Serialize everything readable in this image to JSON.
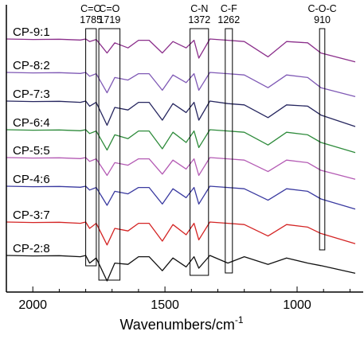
{
  "chart_data": {
    "type": "line",
    "xlabel": "Wavenumbers/cm",
    "xlabel_superscript": "-1",
    "x_ticks": [
      2000,
      1500,
      1000
    ],
    "xlim": [
      2100,
      750
    ],
    "grid": false,
    "legend": "none",
    "series": [
      {
        "name": "CP-9:1",
        "color": "#8b2f8b",
        "values": [
          0.0,
          0.02,
          0.01,
          0.04,
          0.0,
          0.1,
          0.02,
          0.55,
          0.15,
          0.35,
          0.05,
          0.05,
          0.55,
          0.1,
          0.35,
          0.05,
          0.75,
          0.0,
          0.05,
          0.1,
          0.7,
          0.1,
          0.15,
          0.55,
          0.9
        ]
      },
      {
        "name": "CP-8:2",
        "color": "#7f59b5",
        "values": [
          0.0,
          0.02,
          0.01,
          0.04,
          0.0,
          0.15,
          0.05,
          0.8,
          0.2,
          0.3,
          0.05,
          0.05,
          0.7,
          0.1,
          0.4,
          0.05,
          0.7,
          0.0,
          0.05,
          0.1,
          0.6,
          0.1,
          0.2,
          0.6,
          0.95
        ]
      },
      {
        "name": "CP-7:3",
        "color": "#26265f",
        "values": [
          0.0,
          0.02,
          0.01,
          0.05,
          0.0,
          0.2,
          0.05,
          0.95,
          0.25,
          0.35,
          0.05,
          0.05,
          0.75,
          0.1,
          0.45,
          0.05,
          0.75,
          0.0,
          0.1,
          0.15,
          0.65,
          0.15,
          0.2,
          0.55,
          1.0
        ]
      },
      {
        "name": "CP-6:4",
        "color": "#2e8b3b",
        "values": [
          0.0,
          0.02,
          0.01,
          0.04,
          0.0,
          0.15,
          0.05,
          0.8,
          0.2,
          0.35,
          0.05,
          0.05,
          0.75,
          0.1,
          0.5,
          0.05,
          0.7,
          0.0,
          0.05,
          0.1,
          0.6,
          0.1,
          0.2,
          0.5,
          0.9
        ]
      },
      {
        "name": "CP-5:5",
        "color": "#b45bb4",
        "values": [
          0.0,
          0.02,
          0.01,
          0.04,
          0.0,
          0.15,
          0.05,
          0.7,
          0.2,
          0.3,
          0.05,
          0.05,
          0.65,
          0.1,
          0.45,
          0.05,
          0.7,
          0.0,
          0.05,
          0.1,
          0.55,
          0.1,
          0.2,
          0.5,
          0.85
        ]
      },
      {
        "name": "CP-4:6",
        "color": "#3a3aa0",
        "values": [
          0.0,
          0.02,
          0.01,
          0.04,
          0.0,
          0.15,
          0.05,
          0.75,
          0.2,
          0.3,
          0.05,
          0.05,
          0.7,
          0.1,
          0.45,
          0.05,
          0.7,
          0.0,
          0.05,
          0.1,
          0.55,
          0.1,
          0.2,
          0.5,
          0.9
        ]
      },
      {
        "name": "CP-3:7",
        "color": "#d42424",
        "values": [
          0.0,
          0.02,
          0.01,
          0.05,
          0.0,
          0.25,
          0.05,
          0.9,
          0.25,
          0.35,
          0.05,
          0.05,
          0.75,
          0.1,
          0.5,
          0.05,
          0.7,
          0.0,
          0.05,
          0.1,
          0.55,
          0.1,
          0.2,
          0.45,
          0.85
        ]
      },
      {
        "name": "CP-2:8",
        "color": "#111111",
        "values": [
          0.0,
          0.02,
          0.01,
          0.05,
          0.0,
          0.3,
          0.1,
          1.0,
          0.3,
          0.35,
          0.05,
          0.05,
          0.6,
          0.1,
          0.45,
          0.05,
          0.5,
          0.0,
          0.3,
          0.05,
          0.35,
          0.1,
          0.3,
          0.4,
          0.7
        ]
      }
    ],
    "x": [
      2100,
      2000,
      1900,
      1820,
      1800,
      1785,
      1760,
      1719,
      1690,
      1640,
      1600,
      1560,
      1510,
      1470,
      1420,
      1390,
      1372,
      1330,
      1262,
      1200,
      1110,
      1040,
      960,
      910,
      780
    ],
    "annotations": [
      {
        "label": "C=O",
        "value": "1785",
        "x_from": 1800,
        "x_to": 1760
      },
      {
        "label": "C=O",
        "value": "1719",
        "x_from": 1750,
        "x_to": 1670
      },
      {
        "label": "C-N",
        "value": "1372",
        "x_from": 1405,
        "x_to": 1335
      },
      {
        "label": "C-F",
        "value": "1262",
        "x_from": 1272,
        "x_to": 1245
      },
      {
        "label": "C-O-C",
        "value": "910",
        "x_from": 915,
        "x_to": 895
      }
    ]
  }
}
